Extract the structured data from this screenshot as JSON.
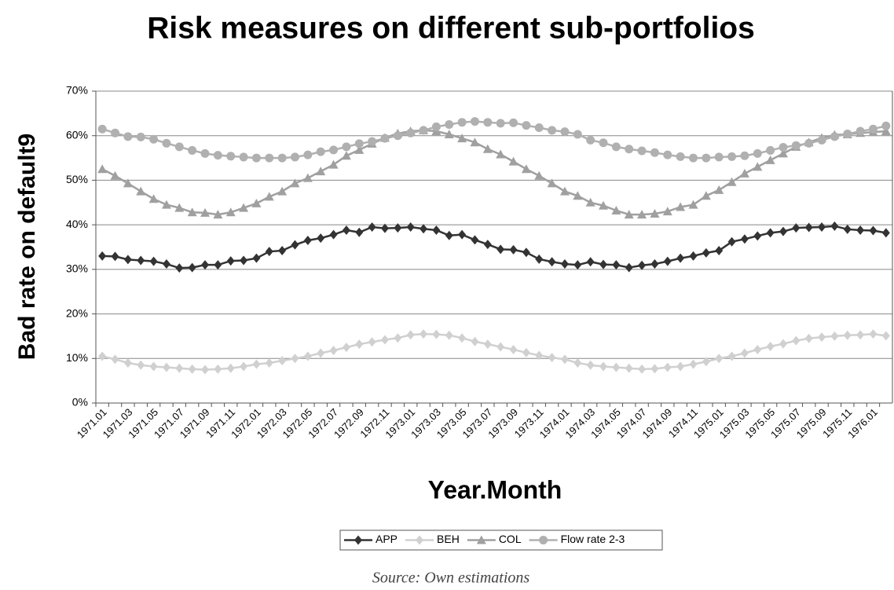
{
  "chart_data": {
    "type": "line",
    "title": "Risk measures on different sub-portfolios",
    "x_label": "Year.Month",
    "y_label": "Bad rate on default9",
    "caption": "Source: Own estimations",
    "categories": [
      "1971.01",
      null,
      "1971.03",
      null,
      "1971.05",
      null,
      "1971.07",
      null,
      "1971.09",
      null,
      "1971.11",
      null,
      "1972.01",
      null,
      "1972.03",
      null,
      "1972.05",
      null,
      "1972.07",
      null,
      "1972.09",
      null,
      "1972.11",
      null,
      "1973.01",
      null,
      "1973.03",
      null,
      "1973.05",
      null,
      "1973.07",
      null,
      "1973.09",
      null,
      "1973.11",
      null,
      "1974.01",
      null,
      "1974.03",
      null,
      "1974.05",
      null,
      "1974.07",
      null,
      "1974.09",
      null,
      "1974.11",
      null,
      "1975.01",
      null,
      "1975.03",
      null,
      "1975.05",
      null,
      "1975.07",
      null,
      "1975.09",
      null,
      "1975.11",
      null,
      "1976.01",
      null
    ],
    "series": [
      {
        "name": "APP",
        "color": "#333333",
        "marker": "diamond",
        "values": [
          33.0,
          32.9,
          32.2,
          32.0,
          31.8,
          31.2,
          30.3,
          30.4,
          31.0,
          31.0,
          31.9,
          32.0,
          32.5,
          34.0,
          34.2,
          35.5,
          36.5,
          37.0,
          37.8,
          38.8,
          38.3,
          39.5,
          39.2,
          39.3,
          39.5,
          39.1,
          38.8,
          37.6,
          37.8,
          36.6,
          35.6,
          34.5,
          34.4,
          33.8,
          32.3,
          31.7,
          31.2,
          31.0,
          31.7,
          31.1,
          31.0,
          30.4,
          30.9,
          31.2,
          31.8,
          32.5,
          33.0,
          33.7,
          34.2,
          36.2,
          36.8,
          37.5,
          38.2,
          38.5,
          39.3,
          39.4,
          39.5,
          39.7,
          39.0,
          38.8,
          38.7,
          38.2
        ]
      },
      {
        "name": "BEH",
        "color": "#d0d0d0",
        "marker": "diamond",
        "values": [
          10.5,
          9.8,
          9.0,
          8.5,
          8.2,
          8.0,
          7.8,
          7.6,
          7.5,
          7.6,
          7.8,
          8.2,
          8.7,
          9.0,
          9.5,
          10.0,
          10.5,
          11.2,
          11.8,
          12.5,
          13.2,
          13.7,
          14.2,
          14.6,
          15.3,
          15.5,
          15.4,
          15.2,
          14.6,
          13.8,
          13.2,
          12.6,
          12.0,
          11.3,
          10.7,
          10.2,
          9.8,
          9.0,
          8.5,
          8.2,
          8.0,
          7.8,
          7.6,
          7.7,
          8.0,
          8.2,
          8.7,
          9.3,
          10.0,
          10.5,
          11.2,
          12.0,
          12.7,
          13.3,
          14.0,
          14.5,
          14.8,
          15.0,
          15.2,
          15.3,
          15.5,
          15.1
        ]
      },
      {
        "name": "COL",
        "color": "#a0a0a0",
        "marker": "triangle",
        "values": [
          52.5,
          51.0,
          49.3,
          47.5,
          45.8,
          44.5,
          43.8,
          42.8,
          42.7,
          42.3,
          42.8,
          43.8,
          44.8,
          46.3,
          47.5,
          49.3,
          50.5,
          52.0,
          53.5,
          55.5,
          56.8,
          58.2,
          59.5,
          60.5,
          61.0,
          61.2,
          61.0,
          60.3,
          59.4,
          58.5,
          57.0,
          55.8,
          54.2,
          52.5,
          51.0,
          49.3,
          47.5,
          46.5,
          45.0,
          44.3,
          43.2,
          42.3,
          42.3,
          42.5,
          43.0,
          44.0,
          44.5,
          46.5,
          47.8,
          49.6,
          51.5,
          53.0,
          54.5,
          56.0,
          57.5,
          58.5,
          59.5,
          60.2,
          60.3,
          60.6,
          60.8,
          61.0
        ]
      },
      {
        "name": "Flow rate 2-3",
        "color": "#b0b0b0",
        "marker": "circle",
        "values": [
          61.5,
          60.6,
          59.8,
          59.7,
          59.2,
          58.3,
          57.5,
          56.7,
          56.0,
          55.6,
          55.4,
          55.2,
          55.0,
          55.0,
          55.0,
          55.2,
          55.7,
          56.4,
          56.8,
          57.5,
          58.2,
          58.7,
          59.4,
          60.0,
          60.6,
          61.2,
          62.0,
          62.5,
          63.0,
          63.2,
          63.0,
          62.8,
          62.9,
          62.3,
          61.8,
          61.2,
          60.9,
          60.3,
          59.0,
          58.4,
          57.5,
          57.0,
          56.6,
          56.2,
          55.7,
          55.3,
          55.0,
          55.0,
          55.2,
          55.3,
          55.5,
          56.0,
          56.7,
          57.4,
          57.8,
          58.3,
          59.0,
          59.8,
          60.4,
          61.0,
          61.5,
          62.2
        ]
      }
    ],
    "ylim": [
      0,
      70
    ],
    "yticks": [
      {
        "value": 0,
        "label": "0%"
      },
      {
        "value": 10,
        "label": "10%"
      },
      {
        "value": 20,
        "label": "20%"
      },
      {
        "value": 30,
        "label": "30%"
      },
      {
        "value": 40,
        "label": "40%"
      },
      {
        "value": 50,
        "label": "50%"
      },
      {
        "value": 60,
        "label": "60%"
      },
      {
        "value": 70,
        "label": "70%"
      }
    ],
    "grid": true,
    "legend": "bottom"
  }
}
